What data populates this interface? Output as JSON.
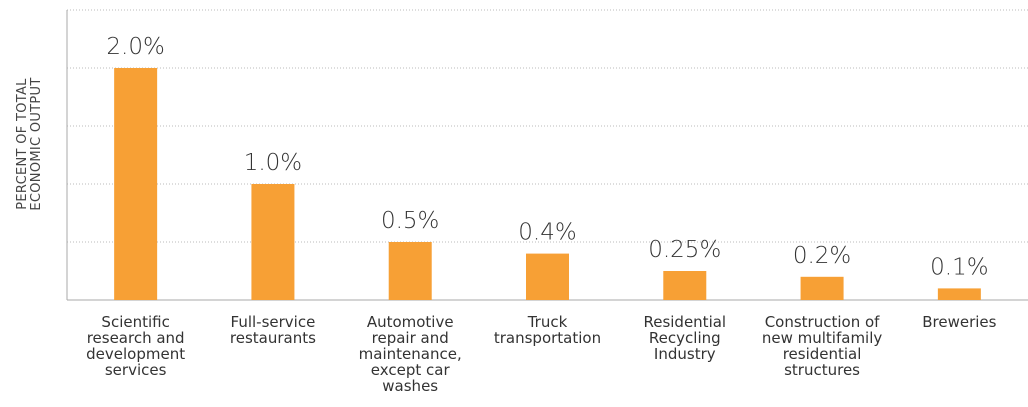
{
  "chart_data": {
    "type": "bar",
    "y_label": "PERCENT OF TOTAL ECONOMIC OUTPUT",
    "categories": [
      "Scientific research and development services",
      "Full-service restaurants",
      "Automotive repair and maintenance, except car washes",
      "Truck transportation",
      "Residential Recycling Industry",
      "Construction of new multifamily residential structures",
      "Breweries"
    ],
    "values": [
      2.0,
      1.0,
      0.5,
      0.4,
      0.25,
      0.2,
      0.1
    ],
    "value_labels": [
      "2.0%",
      "1.0%",
      "0.5%",
      "0.4%",
      "0.25%",
      "0.2%",
      "0.1%"
    ],
    "color": "#f7a035",
    "ylim": [
      0,
      2.5
    ],
    "yticks": [
      0,
      0.5,
      1,
      1.5,
      2,
      2.5
    ],
    "grid": true
  }
}
